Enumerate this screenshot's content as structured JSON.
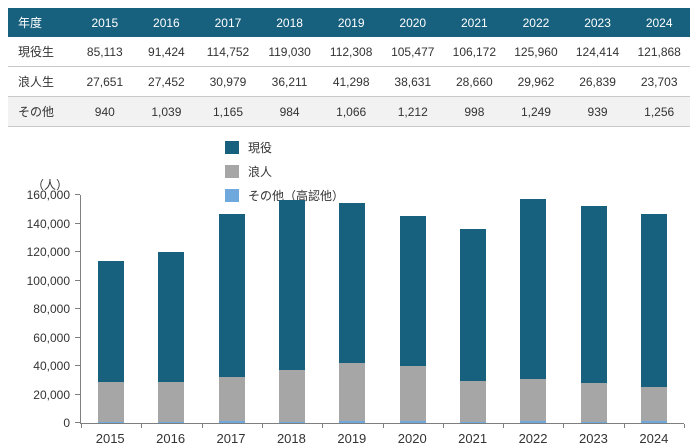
{
  "colors": {
    "primary_blue": "#17617F",
    "gray": "#A6A6A6",
    "light_blue": "#6FA8DC",
    "table_border": "#C9C9C9",
    "axis": "#7F7F7F"
  },
  "table": {
    "header": [
      "年度",
      "2015",
      "2016",
      "2017",
      "2018",
      "2019",
      "2020",
      "2021",
      "2022",
      "2023",
      "2024"
    ],
    "rows": [
      {
        "label": "現役生",
        "values": [
          "85,113",
          "91,424",
          "114,752",
          "119,030",
          "112,308",
          "105,477",
          "106,172",
          "125,960",
          "124,414",
          "121,868"
        ]
      },
      {
        "label": "浪人生",
        "values": [
          "27,651",
          "27,452",
          "30,979",
          "36,211",
          "41,298",
          "38,631",
          "28,660",
          "29,962",
          "26,839",
          "23,703"
        ]
      },
      {
        "label": "その他",
        "values": [
          "940",
          "1,039",
          "1,165",
          "984",
          "1,066",
          "1,212",
          "998",
          "1,249",
          "939",
          "1,256"
        ]
      }
    ]
  },
  "chart_data": {
    "type": "bar",
    "stacked": true,
    "unit_label": "（人）",
    "categories": [
      "2015",
      "2016",
      "2017",
      "2018",
      "2019",
      "2020",
      "2021",
      "2022",
      "2023",
      "2024"
    ],
    "series": [
      {
        "name": "現役",
        "color": "#17617F",
        "values": [
          85113,
          91424,
          114752,
          119030,
          112308,
          105477,
          106172,
          125960,
          124414,
          121868
        ]
      },
      {
        "name": "浪人",
        "color": "#A6A6A6",
        "values": [
          27651,
          27452,
          30979,
          36211,
          41298,
          38631,
          28660,
          29962,
          26839,
          23703
        ]
      },
      {
        "name": "その他（高認他）",
        "color": "#6FA8DC",
        "values": [
          940,
          1039,
          1165,
          984,
          1066,
          1212,
          998,
          1249,
          939,
          1256
        ]
      }
    ],
    "stack_order_bottom_to_top": [
      "その他（高認他）",
      "浪人",
      "現役"
    ],
    "ylim": [
      0,
      160000
    ],
    "ytick_step": 20000,
    "grid": false,
    "legend_position": "top-inside-left"
  }
}
